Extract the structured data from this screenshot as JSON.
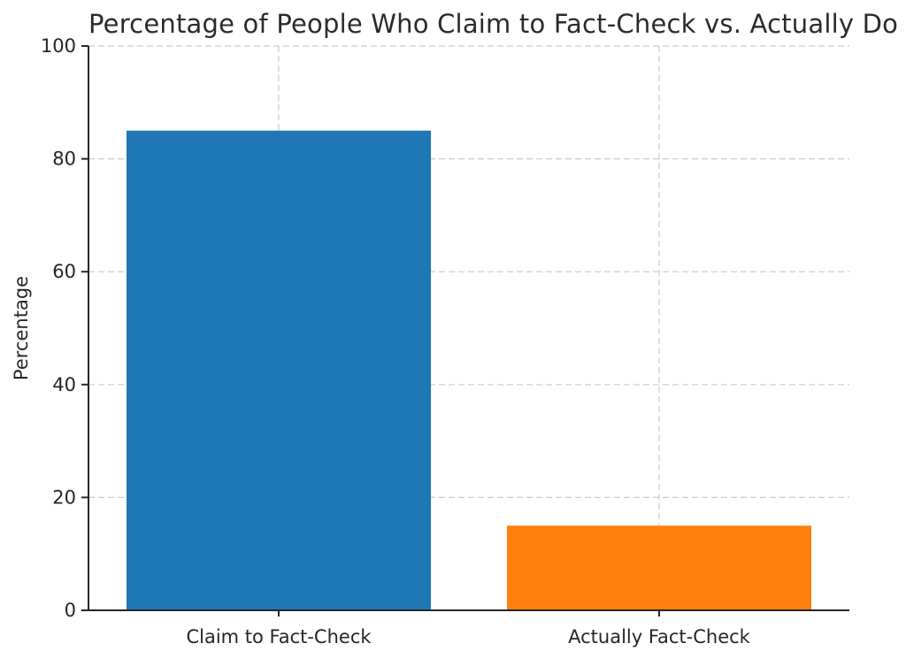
{
  "chart_data": {
    "type": "bar",
    "title": "Percentage of People Who Claim to Fact-Check vs. Actually Do",
    "categories": [
      "Claim to Fact-Check",
      "Actually Fact-Check"
    ],
    "values": [
      85,
      15
    ],
    "xlabel": "",
    "ylabel": "Percentage",
    "ylim": [
      0,
      100
    ],
    "yticks": [
      0,
      20,
      40,
      60,
      80,
      100
    ],
    "bar_colors": [
      "#1f77b4",
      "#ff7f0e"
    ],
    "bar_width_fraction": 0.8,
    "grid": "both",
    "grid_style": "dashed",
    "legend": "none"
  },
  "colors": {
    "background": "#ffffff",
    "grid": "#cccccc",
    "axis": "#262626",
    "text": "#262626"
  }
}
